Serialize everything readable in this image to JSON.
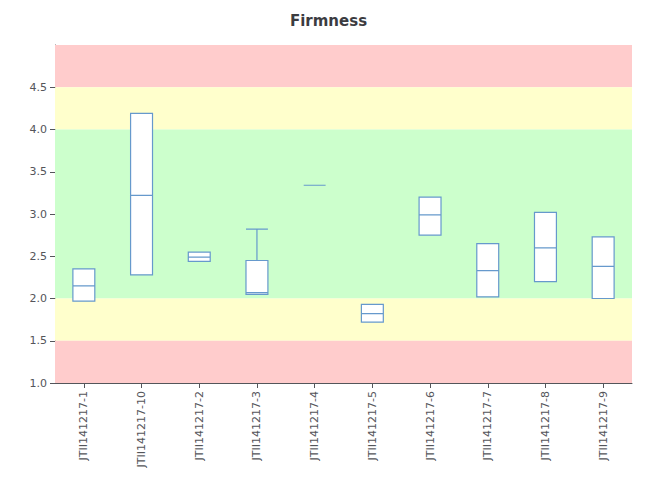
{
  "chart_data": {
    "type": "boxplot",
    "title": "Firmness",
    "categories": [
      "JTII141217-1",
      "JTII141217-10",
      "JTII141217-2",
      "JTII141217-3",
      "JTII141217-4",
      "JTII141217-5",
      "JTII141217-6",
      "JTII141217-7",
      "JTII141217-8",
      "JTII141217-9"
    ],
    "boxes": [
      {
        "q1": 1.97,
        "median": 2.15,
        "q3": 2.35,
        "whislo": 1.97,
        "whishi": 2.35
      },
      {
        "q1": 2.28,
        "median": 3.22,
        "q3": 4.19,
        "whislo": 2.28,
        "whishi": 4.19
      },
      {
        "q1": 2.44,
        "median": 2.49,
        "q3": 2.55,
        "whislo": 2.44,
        "whishi": 2.55
      },
      {
        "q1": 2.05,
        "median": 2.07,
        "q3": 2.45,
        "whislo": 2.05,
        "whishi": 2.82
      },
      {
        "q1": 3.34,
        "median": 3.34,
        "q3": 3.34,
        "whislo": 3.34,
        "whishi": 3.34
      },
      {
        "q1": 1.72,
        "median": 1.82,
        "q3": 1.93,
        "whislo": 1.72,
        "whishi": 1.93
      },
      {
        "q1": 2.75,
        "median": 2.99,
        "q3": 3.2,
        "whislo": 2.75,
        "whishi": 3.2
      },
      {
        "q1": 2.02,
        "median": 2.33,
        "q3": 2.65,
        "whislo": 2.02,
        "whishi": 2.65
      },
      {
        "q1": 2.2,
        "median": 2.6,
        "q3": 3.02,
        "whislo": 2.2,
        "whishi": 3.02
      },
      {
        "q1": 2.0,
        "median": 2.38,
        "q3": 2.73,
        "whislo": 2.0,
        "whishi": 2.73
      }
    ],
    "color": "#6699cc",
    "bands": [
      {
        "from": 4.5,
        "to": 5.0,
        "color": "#ffcccc"
      },
      {
        "from": 4.0,
        "to": 4.5,
        "color": "#ffffcc"
      },
      {
        "from": 2.0,
        "to": 4.0,
        "color": "#ccffcc"
      },
      {
        "from": 1.5,
        "to": 2.0,
        "color": "#ffffcc"
      },
      {
        "from": 1.0,
        "to": 1.5,
        "color": "#ffcccc"
      }
    ],
    "ylim": [
      1.0,
      5.0
    ],
    "yticks": [
      {
        "value": 1.0,
        "label": "1.0"
      },
      1.5,
      {
        "value": 2.0,
        "label": "2.0"
      },
      2.5,
      {
        "value": 3.0,
        "label": "3.0"
      },
      3.5,
      {
        "value": 4.0,
        "label": "4.0"
      },
      4.5
    ],
    "grid": false
  }
}
